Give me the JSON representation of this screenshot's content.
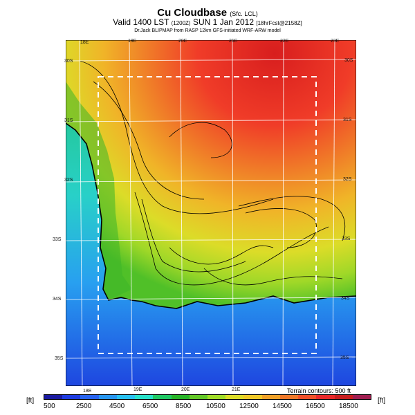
{
  "header": {
    "title": "Cu Cloudbase",
    "title_suffix": "(Sfc. LCL)",
    "valid_line": "Valid 1400 LST",
    "valid_code": "(1200Z)",
    "valid_date": "SUN 1 Jan 2012",
    "valid_fcst": "[18hrFcst@2158Z]",
    "subtitle": "Dr.Jack BLIPMAP from RASP 12km GFS-initiated WRF-ARW model"
  },
  "map": {
    "lon_labels_top": [
      "18E",
      "19E",
      "20E",
      "21E",
      "22E",
      "23E"
    ],
    "lon_labels_bottom": [
      "18E",
      "19E",
      "20E",
      "21E"
    ],
    "lat_labels_left": [
      "30S",
      "31S",
      "32S",
      "33S",
      "34S",
      "35S"
    ],
    "lat_labels_right": [
      "30S",
      "31S",
      "32S",
      "33S",
      "34S",
      "35S"
    ],
    "terrain_note": "Terrain contours: 500 ft"
  },
  "legend": {
    "unit_left": "[ft]",
    "unit_right": "[ft]",
    "tick_labels": [
      "500",
      "2500",
      "4500",
      "6500",
      "8500",
      "10500",
      "12500",
      "14500",
      "16500",
      "18500"
    ],
    "colors": [
      "#1a1aa0",
      "#1e3ce0",
      "#2864f0",
      "#2896f0",
      "#28c0f0",
      "#28e0c8",
      "#20c864",
      "#28b428",
      "#64c828",
      "#a0dc28",
      "#dcdc28",
      "#f0c828",
      "#f0a028",
      "#f07828",
      "#f05028",
      "#e82828",
      "#c81e1e",
      "#a01e50"
    ]
  }
}
